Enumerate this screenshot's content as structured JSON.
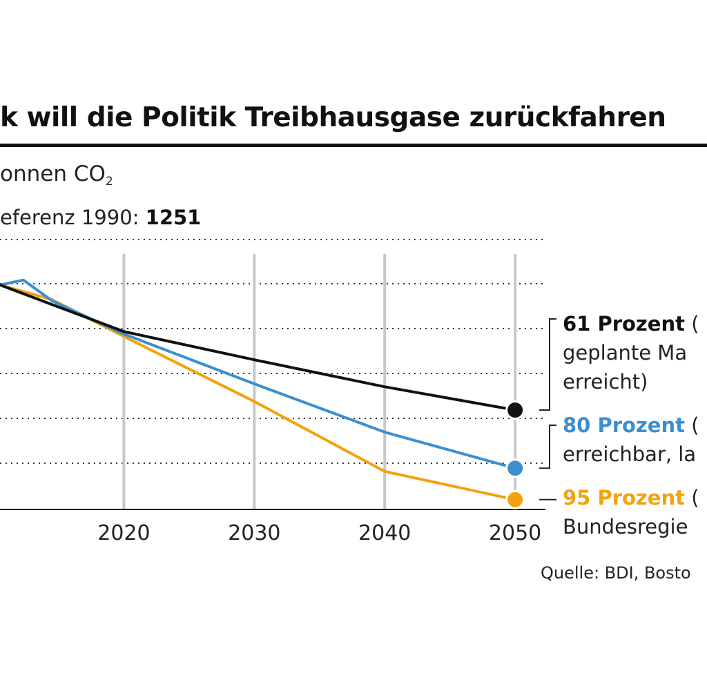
{
  "chart_data": {
    "type": "line",
    "title": "k will die Politik Treibhausgase zurückfahren",
    "unit_label": "onnen CO",
    "unit_subscript": "2",
    "reference": {
      "label": "eferenz 1990: ",
      "value": "1251"
    },
    "x_ticks": [
      "2020",
      "2030",
      "2040",
      "2050"
    ],
    "xlim": [
      2010.5,
      2051
    ],
    "ylim": [
      0,
      1100
    ],
    "grid": {
      "horizontal_dotted": true,
      "vertical_at_ticks": true
    },
    "series": [
      {
        "key": "s61",
        "color": "#111111",
        "points": [
          [
            2010.5,
            915
          ],
          [
            2020,
            725
          ],
          [
            2030,
            610
          ],
          [
            2040,
            500
          ],
          [
            2050,
            405
          ]
        ],
        "label_head": "61 Prozent",
        "label_head_suffix": " (",
        "label_lines": [
          "geplante Ma",
          "erreicht)"
        ]
      },
      {
        "key": "s80",
        "color": "#3b8fd0",
        "points": [
          [
            2010.5,
            915
          ],
          [
            2012.3,
            935
          ],
          [
            2014.5,
            850
          ],
          [
            2020,
            715
          ],
          [
            2030,
            512
          ],
          [
            2040,
            315
          ],
          [
            2050,
            168
          ]
        ],
        "label_head": "80 Prozent",
        "label_head_suffix": " (",
        "label_lines": [
          "erreichbar, la"
        ]
      },
      {
        "key": "s95",
        "color": "#f2a20e",
        "points": [
          [
            2010.5,
            915
          ],
          [
            2014.5,
            855
          ],
          [
            2020,
            705
          ],
          [
            2030,
            440
          ],
          [
            2040,
            155
          ],
          [
            2050,
            40
          ]
        ],
        "label_head": "95 Prozent",
        "label_head_suffix": " (",
        "label_lines": [
          "Bundesregie"
        ]
      }
    ],
    "source": "Quelle: BDI, Bosto"
  }
}
